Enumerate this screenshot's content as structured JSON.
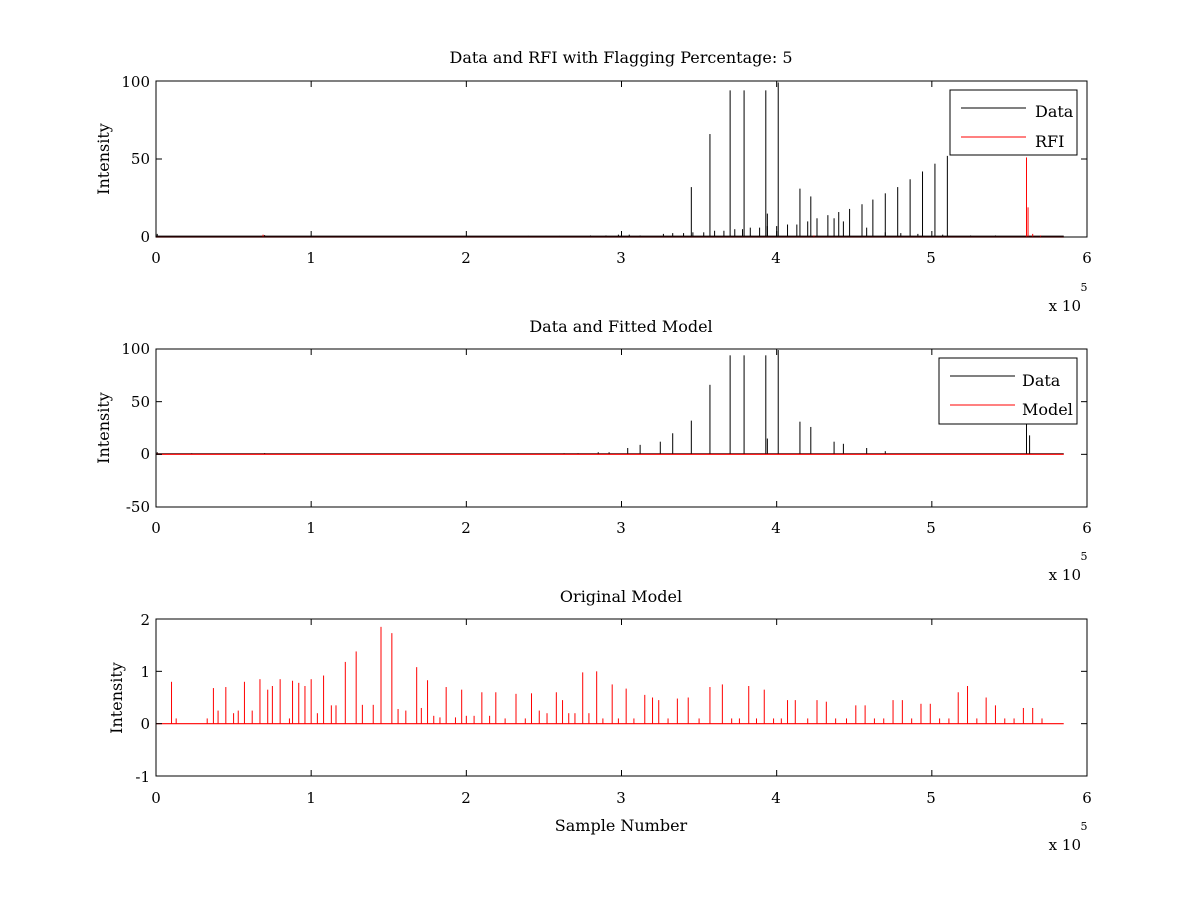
{
  "chart_data": [
    {
      "type": "line",
      "title": "Data and RFI with Flagging Percentage: 5",
      "xlabel": "",
      "ylabel": "Intensity",
      "xlim": [
        0,
        600000
      ],
      "ylim": [
        0,
        100
      ],
      "xticks": [
        "0",
        "1",
        "2",
        "3",
        "4",
        "5",
        "6"
      ],
      "yticks": [
        "0",
        "50",
        "100"
      ],
      "x_multiplier": {
        "base": "x 10",
        "exponent": "5"
      },
      "grid": false,
      "legend_position": "top-right",
      "series": [
        {
          "name": "Data",
          "color": "#000000",
          "baseline": 0.5,
          "x_end": 585000,
          "peaks": [
            [
              800,
              2
            ],
            [
              48000,
              0.6
            ],
            [
              70000,
              1.2
            ],
            [
              150000,
              0.5
            ],
            [
              180000,
              0.6
            ],
            [
              240000,
              0.7
            ],
            [
              260000,
              0.7
            ],
            [
              280000,
              1
            ],
            [
              290000,
              1
            ],
            [
              298000,
              1.5
            ],
            [
              305000,
              1.5
            ],
            [
              312000,
              1
            ],
            [
              327000,
              2
            ],
            [
              333000,
              2.5
            ],
            [
              340000,
              2.5
            ],
            [
              346000,
              3
            ],
            [
              353000,
              3
            ],
            [
              360000,
              4
            ],
            [
              366000,
              4
            ],
            [
              373000,
              5
            ],
            [
              378000,
              5
            ],
            [
              383000,
              6
            ],
            [
              389000,
              6
            ],
            [
              394000,
              7
            ],
            [
              400000,
              7
            ],
            [
              407000,
              8
            ],
            [
              413000,
              8
            ],
            [
              420000,
              10
            ],
            [
              426000,
              12
            ],
            [
              433000,
              14
            ],
            [
              440000,
              16
            ],
            [
              447000,
              18
            ],
            [
              455000,
              21
            ],
            [
              462000,
              24
            ],
            [
              470000,
              28
            ],
            [
              478000,
              32
            ],
            [
              486000,
              37
            ],
            [
              494000,
              42
            ],
            [
              502000,
              47
            ],
            [
              510000,
              52
            ],
            [
              345000,
              32
            ],
            [
              357000,
              66
            ],
            [
              370000,
              94
            ],
            [
              379000,
              94
            ],
            [
              393000,
              94
            ],
            [
              394000,
              15
            ],
            [
              401000,
              99
            ],
            [
              415000,
              31
            ],
            [
              422000,
              26
            ],
            [
              437000,
              12
            ],
            [
              443000,
              10
            ],
            [
              458000,
              6
            ],
            [
              470000,
              3
            ],
            [
              480000,
              2.5
            ],
            [
              491000,
              2
            ],
            [
              507000,
              1.5
            ],
            [
              525000,
              1
            ],
            [
              541000,
              1
            ]
          ]
        },
        {
          "name": "RFI",
          "color": "#ff0000",
          "x_end": 585000,
          "peaks": [
            [
              69000,
              1.5
            ],
            [
              424000,
              1
            ],
            [
              561000,
              51
            ],
            [
              562000,
              19
            ],
            [
              565000,
              2
            ],
            [
              570000,
              1
            ]
          ]
        }
      ]
    },
    {
      "type": "line",
      "title": "Data and Fitted Model",
      "xlabel": "",
      "ylabel": "Intensity",
      "xlim": [
        0,
        600000
      ],
      "ylim": [
        -50,
        100
      ],
      "xticks": [
        "0",
        "1",
        "2",
        "3",
        "4",
        "5",
        "6"
      ],
      "yticks": [
        "-50",
        "0",
        "50",
        "100"
      ],
      "x_multiplier": {
        "base": "x 10",
        "exponent": "5"
      },
      "grid": false,
      "legend_position": "top-right",
      "series": [
        {
          "name": "Data",
          "color": "#000000",
          "baseline": 0.5,
          "x_end": 585000,
          "peaks": [
            [
              800,
              2
            ],
            [
              23000,
              1
            ],
            [
              70000,
              1.2
            ],
            [
              263000,
              1
            ],
            [
              272000,
              1
            ],
            [
              285000,
              2
            ],
            [
              292000,
              2
            ],
            [
              304000,
              6
            ],
            [
              312000,
              9
            ],
            [
              325000,
              12
            ],
            [
              333000,
              20
            ],
            [
              345000,
              32
            ],
            [
              357000,
              66
            ],
            [
              370000,
              94
            ],
            [
              379000,
              94
            ],
            [
              393000,
              94
            ],
            [
              394000,
              15
            ],
            [
              401000,
              99
            ],
            [
              415000,
              31
            ],
            [
              422000,
              26
            ],
            [
              437000,
              12
            ],
            [
              443000,
              10
            ],
            [
              458000,
              6
            ],
            [
              470000,
              3
            ],
            [
              561000,
              33
            ],
            [
              563000,
              18
            ]
          ]
        },
        {
          "name": "Model",
          "color": "#ff0000",
          "x_end": 585000,
          "peaks": []
        }
      ]
    },
    {
      "type": "line",
      "title": "Original Model",
      "xlabel": "Sample Number",
      "ylabel": "Intensity",
      "xlim": [
        0,
        600000
      ],
      "ylim": [
        -1,
        2
      ],
      "xticks": [
        "0",
        "1",
        "2",
        "3",
        "4",
        "5",
        "6"
      ],
      "yticks": [
        "-1",
        "0",
        "1",
        "2"
      ],
      "x_multiplier": {
        "base": "x 10",
        "exponent": "5"
      },
      "grid": false,
      "legend_position": "none",
      "series": [
        {
          "name": "",
          "color": "#ff0000",
          "x_end": 585000,
          "peaks": [
            [
              10000,
              0.8
            ],
            [
              13000,
              0.1
            ],
            [
              33000,
              0.1
            ],
            [
              37000,
              0.68
            ],
            [
              40000,
              0.25
            ],
            [
              45000,
              0.7
            ],
            [
              50000,
              0.2
            ],
            [
              53000,
              0.25
            ],
            [
              57000,
              0.8
            ],
            [
              62000,
              0.25
            ],
            [
              67000,
              0.85
            ],
            [
              72000,
              0.65
            ],
            [
              75000,
              0.72
            ],
            [
              80000,
              0.85
            ],
            [
              86000,
              0.1
            ],
            [
              88000,
              0.82
            ],
            [
              92000,
              0.78
            ],
            [
              96000,
              0.72
            ],
            [
              100000,
              0.85
            ],
            [
              104000,
              0.2
            ],
            [
              108000,
              0.92
            ],
            [
              113000,
              0.35
            ],
            [
              116000,
              0.35
            ],
            [
              122000,
              1.18
            ],
            [
              129000,
              1.38
            ],
            [
              133000,
              0.36
            ],
            [
              140000,
              0.36
            ],
            [
              145000,
              1.85
            ],
            [
              152000,
              1.73
            ],
            [
              156000,
              0.28
            ],
            [
              161000,
              0.25
            ],
            [
              168000,
              1.08
            ],
            [
              171000,
              0.3
            ],
            [
              175000,
              0.83
            ],
            [
              179000,
              0.15
            ],
            [
              183000,
              0.12
            ],
            [
              187000,
              0.7
            ],
            [
              193000,
              0.12
            ],
            [
              197000,
              0.65
            ],
            [
              200000,
              0.15
            ],
            [
              205000,
              0.15
            ],
            [
              210000,
              0.6
            ],
            [
              215000,
              0.15
            ],
            [
              219000,
              0.6
            ],
            [
              225000,
              0.1
            ],
            [
              232000,
              0.57
            ],
            [
              238000,
              0.1
            ],
            [
              242000,
              0.58
            ],
            [
              247000,
              0.25
            ],
            [
              252000,
              0.2
            ],
            [
              258000,
              0.6
            ],
            [
              262000,
              0.45
            ],
            [
              266000,
              0.2
            ],
            [
              270000,
              0.2
            ],
            [
              275000,
              0.98
            ],
            [
              279000,
              0.2
            ],
            [
              284000,
              1.0
            ],
            [
              288000,
              0.1
            ],
            [
              294000,
              0.75
            ],
            [
              298000,
              0.1
            ],
            [
              303000,
              0.67
            ],
            [
              308000,
              0.1
            ],
            [
              315000,
              0.55
            ],
            [
              320000,
              0.5
            ],
            [
              324000,
              0.45
            ],
            [
              330000,
              0.1
            ],
            [
              336000,
              0.48
            ],
            [
              343000,
              0.5
            ],
            [
              350000,
              0.1
            ],
            [
              357000,
              0.7
            ],
            [
              365000,
              0.75
            ],
            [
              371000,
              0.1
            ],
            [
              376000,
              0.1
            ],
            [
              382000,
              0.72
            ],
            [
              387000,
              0.1
            ],
            [
              392000,
              0.65
            ],
            [
              398000,
              0.1
            ],
            [
              403000,
              0.1
            ],
            [
              407000,
              0.45
            ],
            [
              412000,
              0.45
            ],
            [
              420000,
              0.1
            ],
            [
              426000,
              0.45
            ],
            [
              432000,
              0.42
            ],
            [
              438000,
              0.1
            ],
            [
              445000,
              0.1
            ],
            [
              451000,
              0.35
            ],
            [
              457000,
              0.35
            ],
            [
              463000,
              0.1
            ],
            [
              469000,
              0.1
            ],
            [
              475000,
              0.45
            ],
            [
              481000,
              0.45
            ],
            [
              487000,
              0.1
            ],
            [
              493000,
              0.38
            ],
            [
              499000,
              0.38
            ],
            [
              505000,
              0.1
            ],
            [
              511000,
              0.1
            ],
            [
              517000,
              0.6
            ],
            [
              523000,
              0.72
            ],
            [
              529000,
              0.1
            ],
            [
              535000,
              0.5
            ],
            [
              541000,
              0.35
            ],
            [
              547000,
              0.1
            ],
            [
              553000,
              0.1
            ],
            [
              559000,
              0.3
            ],
            [
              565000,
              0.3
            ],
            [
              571000,
              0.1
            ]
          ]
        }
      ]
    }
  ]
}
